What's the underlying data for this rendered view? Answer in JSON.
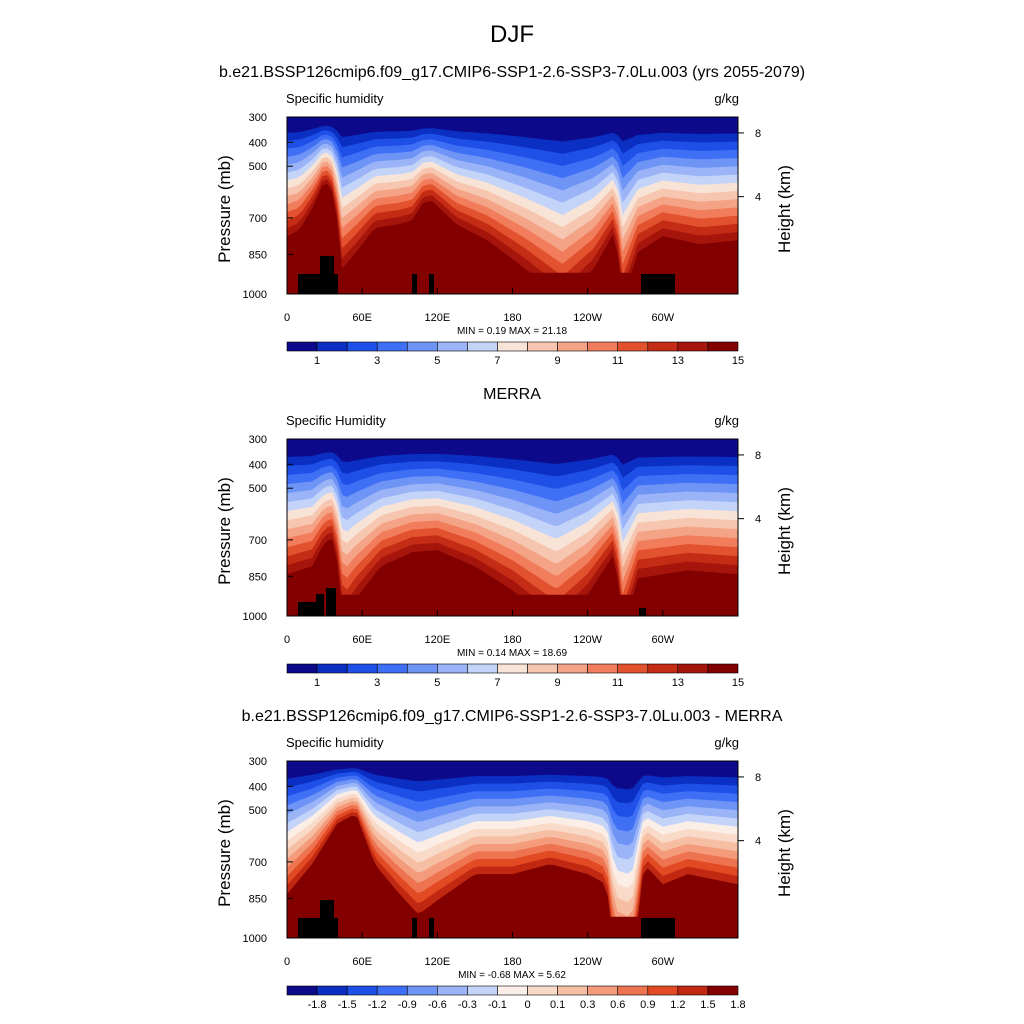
{
  "figure": {
    "title": "DJF",
    "panel1_title": "b.e21.BSSP126cmip6.f09_g17.CMIP6-SSP1-2.6-SSP3-7.0Lu.003 (yrs 2055-2079)",
    "panel2_title": "MERRA",
    "panel3_title": "b.e21.BSSP126cmip6.f09_g17.CMIP6-SSP1-2.6-SSP3-7.0Lu.003 - MERRA"
  },
  "colors": {
    "abs_scale": [
      "#0c0a8a",
      "#0b2fc2",
      "#1e50e8",
      "#3f6ff5",
      "#6e94f6",
      "#9ab4f7",
      "#c4d4f9",
      "#f8e4d6",
      "#f7c6b0",
      "#f4a386",
      "#f17d5c",
      "#e3522f",
      "#c52c15",
      "#a6150b",
      "#820000"
    ],
    "diff_scale": [
      "#0c0a8a",
      "#0b2fc2",
      "#1e50e8",
      "#3f6ff5",
      "#6e94f6",
      "#9ab4f7",
      "#c4d4f9",
      "#fbeee6",
      "#f9d9c8",
      "#f6bea3",
      "#f39b7b",
      "#ee7350",
      "#e24a24",
      "#c02812",
      "#820000"
    ]
  },
  "chart_data": [
    {
      "type": "heatmap",
      "title": "b.e21.BSSP126cmip6.f09_g17.CMIP6-SSP1-2.6-SSP3-7.0Lu.003 (yrs 2055-2079)",
      "left_label": "Specific humidity",
      "units": "g/kg",
      "ylabel": "Pressure (mb)",
      "ylabel_right": "Height (km)",
      "xticks": [
        "0",
        "60E",
        "120E",
        "180",
        "120W",
        "60W"
      ],
      "yticks": [
        "300",
        "400",
        "500",
        "700",
        "850",
        "1000"
      ],
      "right_ticks": [
        "8",
        "4"
      ],
      "colorbar_labels": [
        "1",
        "3",
        "5",
        "7",
        "9",
        "11",
        "13",
        "15"
      ],
      "stats": "MIN =   0.19  MAX =  21.18",
      "profile": [
        [
          0,
          0.52
        ],
        [
          10,
          0.55
        ],
        [
          22,
          0.68
        ],
        [
          30,
          0.8
        ],
        [
          38,
          0.72
        ],
        [
          44,
          0.36
        ],
        [
          55,
          0.44
        ],
        [
          70,
          0.56
        ],
        [
          90,
          0.58
        ],
        [
          100,
          0.6
        ],
        [
          108,
          0.68
        ],
        [
          115,
          0.7
        ],
        [
          135,
          0.58
        ],
        [
          160,
          0.5
        ],
        [
          190,
          0.36
        ],
        [
          220,
          0.2
        ],
        [
          245,
          0.36
        ],
        [
          262,
          0.55
        ],
        [
          268,
          0.2
        ],
        [
          280,
          0.44
        ],
        [
          300,
          0.52
        ],
        [
          330,
          0.48
        ],
        [
          360,
          0.5
        ]
      ]
    },
    {
      "type": "heatmap",
      "title": "MERRA",
      "left_label": "Specific Humidity",
      "units": "g/kg",
      "ylabel": "Pressure (mb)",
      "ylabel_right": "Height (km)",
      "xticks": [
        "0",
        "60E",
        "120E",
        "180",
        "120W",
        "60W"
      ],
      "yticks": [
        "300",
        "400",
        "500",
        "700",
        "850",
        "1000"
      ],
      "right_ticks": [
        "8",
        "4"
      ],
      "colorbar_labels": [
        "1",
        "3",
        "5",
        "7",
        "9",
        "11",
        "13",
        "15"
      ],
      "stats": "MIN =   0.14  MAX =  18.69",
      "profile": [
        [
          0,
          0.44
        ],
        [
          20,
          0.48
        ],
        [
          30,
          0.6
        ],
        [
          38,
          0.62
        ],
        [
          45,
          0.22
        ],
        [
          55,
          0.32
        ],
        [
          75,
          0.48
        ],
        [
          100,
          0.55
        ],
        [
          120,
          0.56
        ],
        [
          150,
          0.48
        ],
        [
          180,
          0.36
        ],
        [
          215,
          0.18
        ],
        [
          240,
          0.34
        ],
        [
          262,
          0.55
        ],
        [
          268,
          0.15
        ],
        [
          280,
          0.42
        ],
        [
          320,
          0.46
        ],
        [
          360,
          0.44
        ]
      ]
    },
    {
      "type": "heatmap",
      "title": "b.e21.BSSP126cmip6.f09_g17.CMIP6-SSP1-2.6-SSP3-7.0Lu.003 - MERRA",
      "left_label": "Specific humidity",
      "units": "g/kg",
      "ylabel": "Pressure (mb)",
      "ylabel_right": "Height (km)",
      "xticks": [
        "0",
        "60E",
        "120E",
        "180",
        "120W",
        "60W"
      ],
      "yticks": [
        "300",
        "400",
        "500",
        "700",
        "850",
        "1000"
      ],
      "right_ticks": [
        "8",
        "4"
      ],
      "colorbar_labels": [
        "-1.8",
        "-1.5",
        "-1.2",
        "-0.9",
        "-0.6",
        "-0.3",
        "-0.1",
        "0",
        "0.1",
        "0.3",
        "0.6",
        "0.9",
        "1.2",
        "1.5",
        "1.8"
      ],
      "stats": "MIN =  -0.68  MAX =    5.62",
      "profile": [
        [
          0,
          0.45
        ],
        [
          20,
          0.6
        ],
        [
          40,
          0.8
        ],
        [
          55,
          0.85
        ],
        [
          70,
          0.6
        ],
        [
          90,
          0.45
        ],
        [
          105,
          0.35
        ],
        [
          120,
          0.42
        ],
        [
          150,
          0.55
        ],
        [
          180,
          0.55
        ],
        [
          210,
          0.6
        ],
        [
          240,
          0.55
        ],
        [
          255,
          0.5
        ],
        [
          262,
          0.1
        ],
        [
          275,
          0.05
        ],
        [
          285,
          0.6
        ],
        [
          300,
          0.5
        ],
        [
          320,
          0.55
        ],
        [
          360,
          0.5
        ]
      ]
    }
  ]
}
